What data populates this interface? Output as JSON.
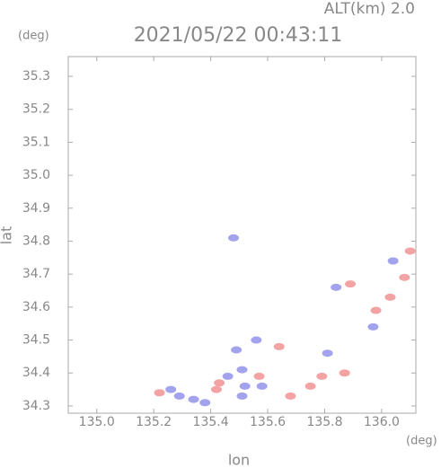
{
  "chart_data": {
    "type": "scatter",
    "title": "2021/05/22 00:43:11",
    "altitude_label": "ALT(km) 2.0",
    "y_unit": "(deg)",
    "x_unit": "(deg)",
    "xlabel": "lon",
    "ylabel": "lat",
    "xlim": [
      134.9,
      136.12
    ],
    "ylim": [
      34.278,
      35.36
    ],
    "xticks": [
      {
        "value": 135,
        "label": "135.0"
      },
      135.2,
      135.4,
      135.6,
      135.8,
      {
        "value": 136,
        "label": "136.0"
      }
    ],
    "yticks": [
      34.3,
      34.4,
      34.5,
      34.6,
      34.7,
      34.8,
      34.9,
      {
        "value": 35,
        "label": "35.0"
      },
      35.1,
      35.2,
      35.3
    ],
    "series": [
      {
        "color": "#8c8ce8",
        "x": [
          135.26,
          135.29,
          135.34,
          135.38,
          135.46,
          135.51,
          135.52,
          135.51,
          135.49,
          135.56,
          135.48,
          135.84,
          135.81,
          135.97,
          136.04,
          135.58
        ],
        "values": [
          34.35,
          34.33,
          34.32,
          34.31,
          34.39,
          34.41,
          34.36,
          34.33,
          34.47,
          34.5,
          34.81,
          34.66,
          34.46,
          34.54,
          34.74,
          34.36
        ]
      },
      {
        "color": "#f08c8c",
        "x": [
          135.22,
          135.42,
          135.57,
          135.64,
          135.68,
          135.75,
          135.79,
          135.87,
          135.89,
          135.98,
          136.03,
          136.08,
          136.1,
          135.43
        ],
        "values": [
          34.34,
          34.35,
          34.39,
          34.48,
          34.33,
          34.36,
          34.39,
          34.4,
          34.67,
          34.59,
          34.63,
          34.69,
          34.77,
          34.37
        ]
      }
    ]
  }
}
